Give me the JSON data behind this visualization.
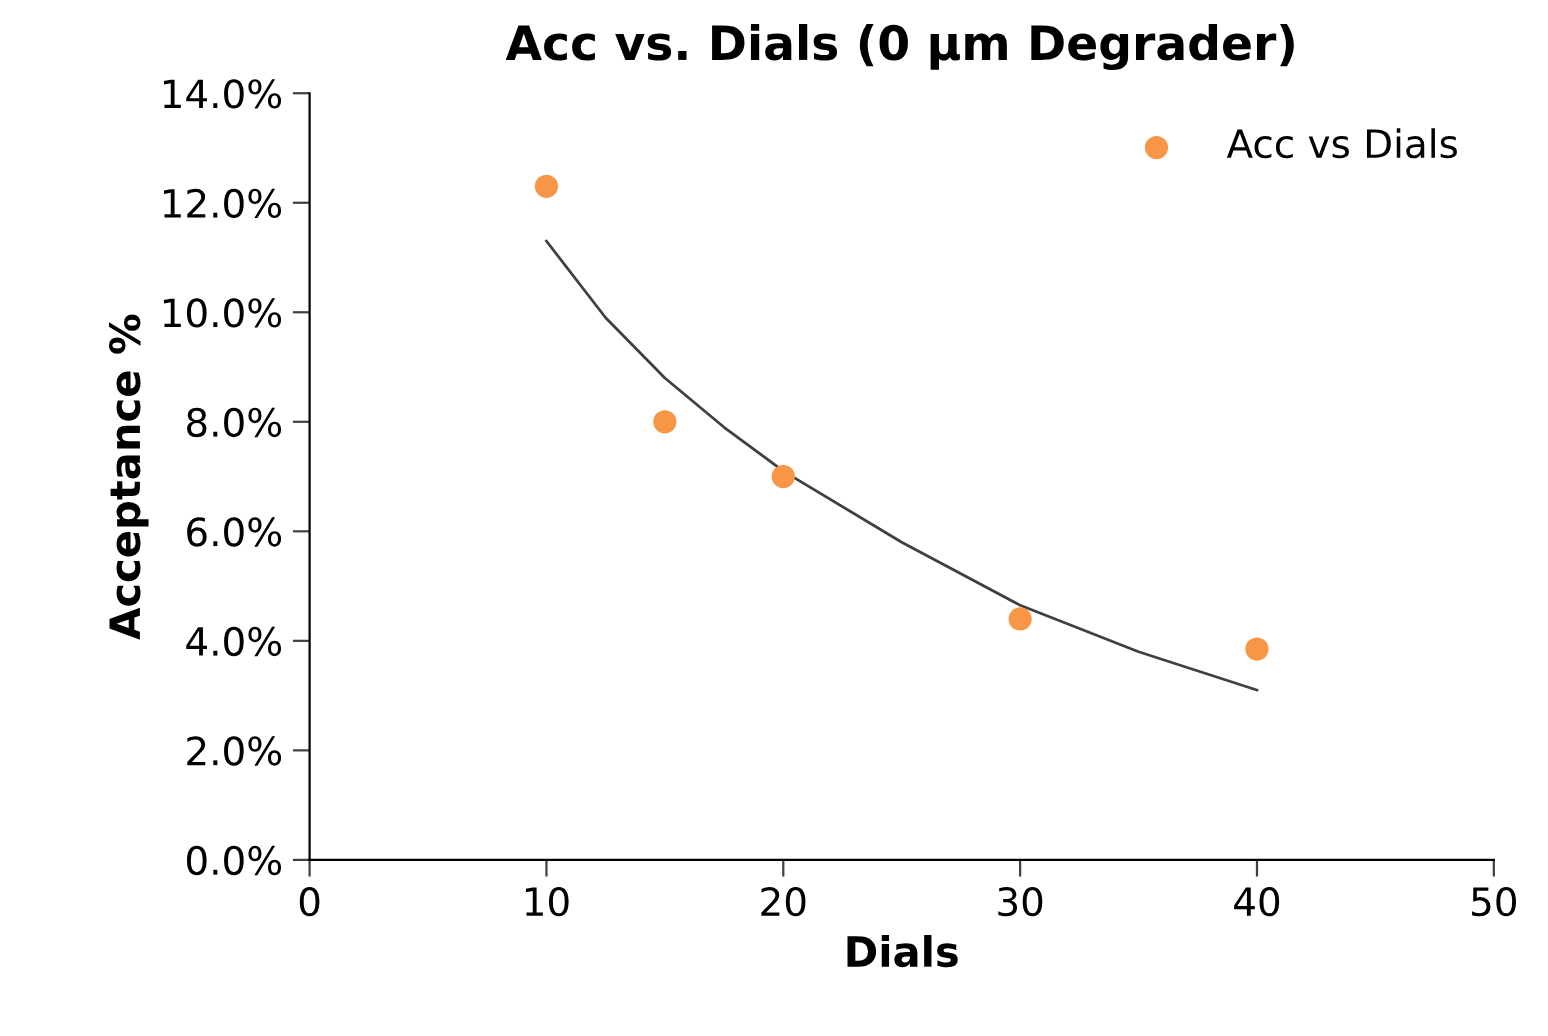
{
  "chart_data": {
    "type": "scatter",
    "title": "Acc vs. Dials (0 µm Degrader)",
    "xlabel": "Dials",
    "ylabel": "Acceptance %",
    "series": [
      {
        "name": "Acc vs Dials",
        "color": "#f79646",
        "x": [
          10,
          15,
          20,
          30,
          40
        ],
        "values": [
          12.3,
          8.0,
          7.0,
          4.4,
          3.85
        ],
        "marker": "circle"
      },
      {
        "type": "line",
        "color": "#404040",
        "x": [
          10,
          12.5,
          15,
          17.5,
          20,
          25,
          30,
          35,
          40
        ],
        "values": [
          11.3,
          9.9,
          8.8,
          7.9,
          7.1,
          5.8,
          4.65,
          3.8,
          3.1
        ],
        "marker": "none",
        "line_style": "solid"
      }
    ],
    "xlim": [
      0,
      50
    ],
    "xticks": [
      0,
      10,
      20,
      30,
      40,
      50
    ],
    "ylim": [
      0,
      14
    ],
    "yticks": [
      {
        "value": 0,
        "label": "0.0%"
      },
      {
        "value": 2,
        "label": "2.0%"
      },
      {
        "value": 4,
        "label": "4.0%"
      },
      {
        "value": 6,
        "label": "6.0%"
      },
      {
        "value": 8,
        "label": "8.0%"
      },
      {
        "value": 10,
        "label": "10.0%"
      },
      {
        "value": 12,
        "label": "12.0%"
      },
      {
        "value": 14,
        "label": "14.0%"
      }
    ],
    "grid": false,
    "legend": "top right"
  }
}
